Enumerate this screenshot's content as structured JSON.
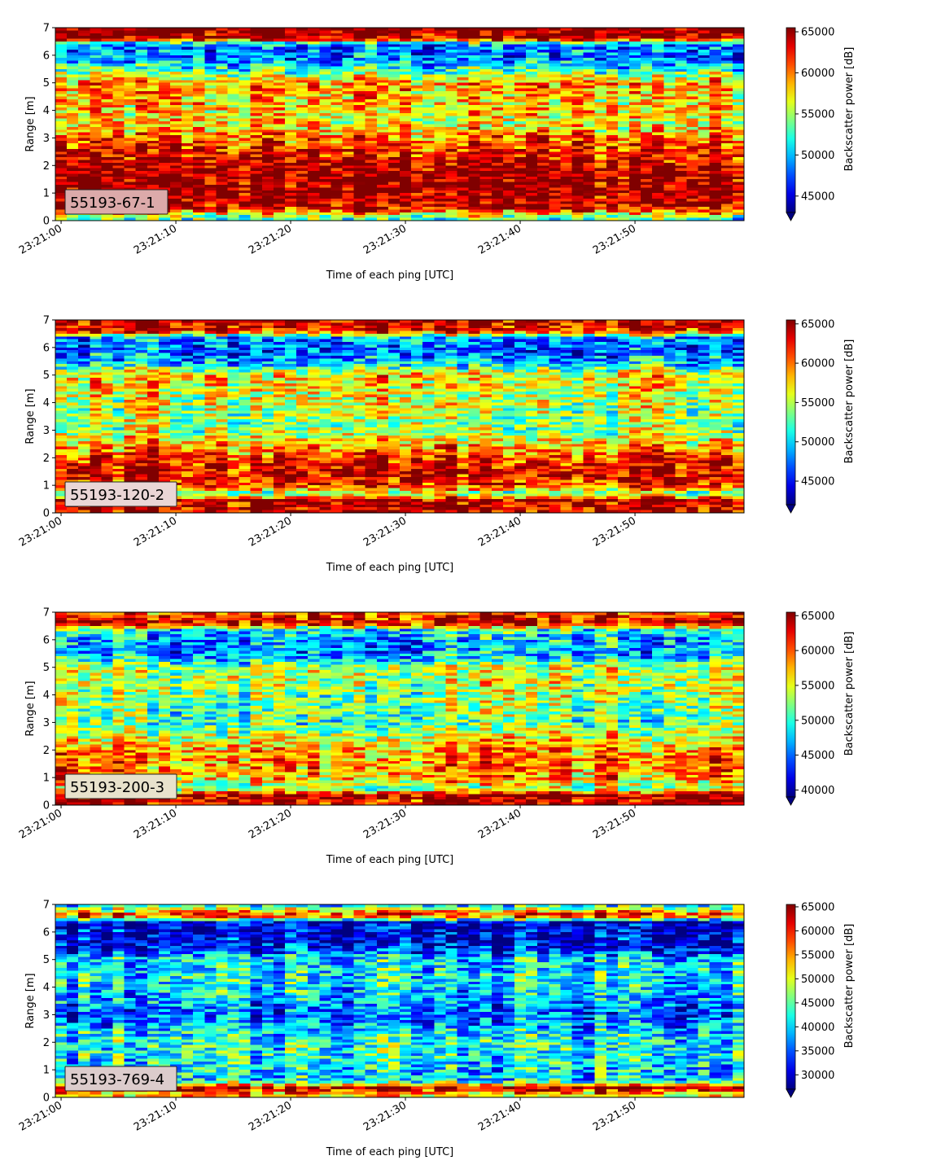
{
  "panels": [
    {
      "label": "55193-67-1",
      "label_bg": "#dcaaaa",
      "colorbar": {
        "min": 43000,
        "max": 65500,
        "ticks": [
          "45000",
          "50000",
          "55000",
          "60000",
          "65000"
        ],
        "tick_values": [
          45000,
          50000,
          55000,
          60000,
          65000
        ],
        "label": "Backscatter power [dB]"
      },
      "profile": [
        {
          "range": 6.95,
          "value": 1.0
        },
        {
          "range": 6.6,
          "value": 0.95
        },
        {
          "range": 6.4,
          "value": 0.25
        },
        {
          "range": 6.0,
          "value": 0.22
        },
        {
          "range": 5.5,
          "value": 0.4
        },
        {
          "range": 5.0,
          "value": 0.72
        },
        {
          "range": 4.5,
          "value": 0.68
        },
        {
          "range": 4.0,
          "value": 0.66
        },
        {
          "range": 3.5,
          "value": 0.62
        },
        {
          "range": 3.0,
          "value": 0.75
        },
        {
          "range": 2.5,
          "value": 0.85
        },
        {
          "range": 2.0,
          "value": 0.95
        },
        {
          "range": 1.5,
          "value": 0.98
        },
        {
          "range": 1.0,
          "value": 0.98
        },
        {
          "range": 0.5,
          "value": 0.95
        },
        {
          "range": 0.2,
          "value": 0.6
        },
        {
          "range": 0.1,
          "value": 0.45
        }
      ]
    },
    {
      "label": "55193-120-2",
      "label_bg": "#ead6d6",
      "colorbar": {
        "min": 42000,
        "max": 65500,
        "ticks": [
          "45000",
          "50000",
          "55000",
          "60000",
          "65000"
        ],
        "tick_values": [
          45000,
          50000,
          55000,
          60000,
          65000
        ],
        "label": "Backscatter power [dB]"
      },
      "profile": [
        {
          "range": 6.95,
          "value": 0.95
        },
        {
          "range": 6.6,
          "value": 0.9
        },
        {
          "range": 6.35,
          "value": 0.3
        },
        {
          "range": 5.9,
          "value": 0.22
        },
        {
          "range": 5.4,
          "value": 0.35
        },
        {
          "range": 5.0,
          "value": 0.68
        },
        {
          "range": 4.5,
          "value": 0.62
        },
        {
          "range": 4.0,
          "value": 0.6
        },
        {
          "range": 3.5,
          "value": 0.55
        },
        {
          "range": 3.0,
          "value": 0.55
        },
        {
          "range": 2.5,
          "value": 0.7
        },
        {
          "range": 2.0,
          "value": 0.85
        },
        {
          "range": 1.5,
          "value": 0.92
        },
        {
          "range": 1.0,
          "value": 0.88
        },
        {
          "range": 0.7,
          "value": 0.5
        },
        {
          "range": 0.45,
          "value": 0.98
        },
        {
          "range": 0.1,
          "value": 0.95
        }
      ]
    },
    {
      "label": "55193-200-3",
      "label_bg": "#e8e2cc",
      "colorbar": {
        "min": 39000,
        "max": 65500,
        "ticks": [
          "40000",
          "45000",
          "50000",
          "55000",
          "60000",
          "65000"
        ],
        "tick_values": [
          40000,
          45000,
          50000,
          55000,
          60000,
          65000
        ],
        "label": "Backscatter power [dB]"
      },
      "profile": [
        {
          "range": 6.95,
          "value": 0.8
        },
        {
          "range": 6.6,
          "value": 0.95
        },
        {
          "range": 6.35,
          "value": 0.4
        },
        {
          "range": 5.9,
          "value": 0.28
        },
        {
          "range": 5.4,
          "value": 0.3
        },
        {
          "range": 5.0,
          "value": 0.55
        },
        {
          "range": 4.5,
          "value": 0.58
        },
        {
          "range": 4.0,
          "value": 0.52
        },
        {
          "range": 3.5,
          "value": 0.5
        },
        {
          "range": 3.0,
          "value": 0.45
        },
        {
          "range": 2.5,
          "value": 0.6
        },
        {
          "range": 2.0,
          "value": 0.72
        },
        {
          "range": 1.5,
          "value": 0.75
        },
        {
          "range": 1.0,
          "value": 0.72
        },
        {
          "range": 0.6,
          "value": 0.5
        },
        {
          "range": 0.35,
          "value": 0.98
        },
        {
          "range": 0.1,
          "value": 0.9
        }
      ]
    },
    {
      "label": "55193-769-4",
      "label_bg": "#dccccc",
      "colorbar": {
        "min": 27000,
        "max": 65500,
        "ticks": [
          "30000",
          "35000",
          "40000",
          "45000",
          "50000",
          "55000",
          "60000",
          "65000"
        ],
        "tick_values": [
          30000,
          35000,
          40000,
          45000,
          50000,
          55000,
          60000,
          65000
        ],
        "label": "Backscatter power [dB]"
      },
      "profile": [
        {
          "range": 6.95,
          "value": 0.4
        },
        {
          "range": 6.6,
          "value": 0.9
        },
        {
          "range": 6.35,
          "value": 0.1
        },
        {
          "range": 5.9,
          "value": 0.08
        },
        {
          "range": 5.4,
          "value": 0.15
        },
        {
          "range": 5.0,
          "value": 0.35
        },
        {
          "range": 4.5,
          "value": 0.38
        },
        {
          "range": 4.0,
          "value": 0.36
        },
        {
          "range": 3.5,
          "value": 0.3
        },
        {
          "range": 3.0,
          "value": 0.22
        },
        {
          "range": 2.5,
          "value": 0.32
        },
        {
          "range": 2.0,
          "value": 0.42
        },
        {
          "range": 1.5,
          "value": 0.4
        },
        {
          "range": 1.0,
          "value": 0.36
        },
        {
          "range": 0.6,
          "value": 0.35
        },
        {
          "range": 0.35,
          "value": 0.95
        },
        {
          "range": 0.1,
          "value": 0.7
        }
      ]
    }
  ],
  "chart_data": [
    {
      "type": "heatmap",
      "xlabel": "Time of each ping [UTC]",
      "ylabel": "Range [m]",
      "x_ticks": [
        "23:21:00",
        "23:21:10",
        "23:21:20",
        "23:21:30",
        "23:21:40",
        "23:21:50"
      ],
      "x_tick_seconds": [
        0,
        10,
        20,
        30,
        40,
        50
      ],
      "xlim_seconds": [
        -0.5,
        59.5
      ],
      "y_ticks": [
        "0",
        "1",
        "2",
        "3",
        "4",
        "5",
        "6",
        "7"
      ],
      "ylim": [
        0,
        7
      ],
      "colormap": "jet",
      "colorbar_label": "Backscatter power [dB]",
      "colorbar_range": [
        43000,
        65500
      ],
      "annotation": "55193-67-1"
    },
    {
      "type": "heatmap",
      "xlabel": "Time of each ping [UTC]",
      "ylabel": "Range [m]",
      "x_ticks": [
        "23:21:00",
        "23:21:10",
        "23:21:20",
        "23:21:30",
        "23:21:40",
        "23:21:50"
      ],
      "x_tick_seconds": [
        0,
        10,
        20,
        30,
        40,
        50
      ],
      "xlim_seconds": [
        -0.5,
        59.5
      ],
      "y_ticks": [
        "0",
        "1",
        "2",
        "3",
        "4",
        "5",
        "6",
        "7"
      ],
      "ylim": [
        0,
        7
      ],
      "colormap": "jet",
      "colorbar_label": "Backscatter power [dB]",
      "colorbar_range": [
        42000,
        65500
      ],
      "annotation": "55193-120-2"
    },
    {
      "type": "heatmap",
      "xlabel": "Time of each ping [UTC]",
      "ylabel": "Range [m]",
      "x_ticks": [
        "23:21:00",
        "23:21:10",
        "23:21:20",
        "23:21:30",
        "23:21:40",
        "23:21:50"
      ],
      "x_tick_seconds": [
        0,
        10,
        20,
        30,
        40,
        50
      ],
      "xlim_seconds": [
        -0.5,
        59.5
      ],
      "y_ticks": [
        "0",
        "1",
        "2",
        "3",
        "4",
        "5",
        "6",
        "7"
      ],
      "ylim": [
        0,
        7
      ],
      "colormap": "jet",
      "colorbar_label": "Backscatter power [dB]",
      "colorbar_range": [
        39000,
        65500
      ],
      "annotation": "55193-200-3"
    },
    {
      "type": "heatmap",
      "xlabel": "Time of each ping [UTC]",
      "ylabel": "Range [m]",
      "x_ticks": [
        "23:21:00",
        "23:21:10",
        "23:21:20",
        "23:21:30",
        "23:21:40",
        "23:21:50"
      ],
      "x_tick_seconds": [
        0,
        10,
        20,
        30,
        40,
        50
      ],
      "xlim_seconds": [
        -0.5,
        59.5
      ],
      "y_ticks": [
        "0",
        "1",
        "2",
        "3",
        "4",
        "5",
        "6",
        "7"
      ],
      "ylim": [
        0,
        7
      ],
      "colormap": "jet",
      "colorbar_label": "Backscatter power [dB]",
      "colorbar_range": [
        27000,
        65500
      ],
      "annotation": "55193-769-4"
    }
  ]
}
